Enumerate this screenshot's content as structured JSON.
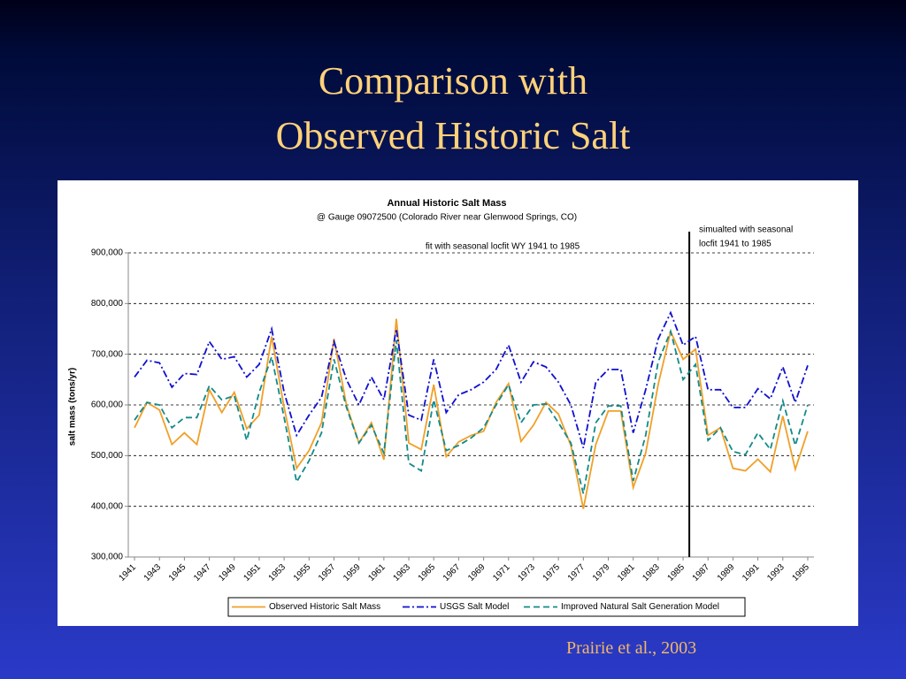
{
  "slide": {
    "title_lines": [
      "Comparison with",
      "Observed Historic Salt"
    ],
    "citation": "Prairie et al., 2003"
  },
  "chart_data": {
    "type": "line",
    "title": "Annual Historic Salt Mass",
    "subtitle": "@ Gauge 09072500 (Colorado River near Glenwood Springs, CO)",
    "annotations": [
      "fit with seasonal locfit WY 1941 to 1985",
      "simualted with seasonal",
      "locfit 1941 to 1985"
    ],
    "divider_x": 1985.5,
    "y_label": "salt mass (tons/yr)",
    "x": [
      1941,
      1942,
      1943,
      1944,
      1945,
      1946,
      1947,
      1948,
      1949,
      1950,
      1951,
      1952,
      1953,
      1954,
      1955,
      1956,
      1957,
      1958,
      1959,
      1960,
      1961,
      1962,
      1963,
      1964,
      1965,
      1966,
      1967,
      1968,
      1969,
      1970,
      1971,
      1972,
      1973,
      1974,
      1975,
      1976,
      1977,
      1978,
      1979,
      1980,
      1981,
      1982,
      1983,
      1984,
      1985,
      1986,
      1987,
      1988,
      1989,
      1990,
      1991,
      1992,
      1993,
      1994,
      1995
    ],
    "xlim": [
      1940.5,
      1995.5
    ],
    "xticks": [
      1941,
      1943,
      1945,
      1947,
      1949,
      1951,
      1953,
      1955,
      1957,
      1959,
      1961,
      1963,
      1965,
      1967,
      1969,
      1971,
      1973,
      1975,
      1977,
      1979,
      1981,
      1983,
      1985,
      1987,
      1989,
      1991,
      1993,
      1995
    ],
    "ylim": [
      300000,
      900000
    ],
    "yticks": [
      {
        "value": 300000,
        "label": "300,000"
      },
      {
        "value": 400000,
        "label": "400,000"
      },
      {
        "value": 500000,
        "label": "500,000"
      },
      {
        "value": 600000,
        "label": "600,000"
      },
      {
        "value": 700000,
        "label": "700,000"
      },
      {
        "value": 800000,
        "label": "800,000"
      },
      {
        "value": 900000,
        "label": "900,000"
      }
    ],
    "grid": true,
    "legend": "bottom",
    "series": [
      {
        "name": "Observed Historic Salt Mass",
        "color": "#f0a028",
        "style": "solid",
        "values": [
          555000,
          605000,
          590000,
          522000,
          545000,
          522000,
          630000,
          585000,
          625000,
          553000,
          580000,
          735000,
          595000,
          475000,
          510000,
          565000,
          730000,
          600000,
          525000,
          565000,
          492000,
          770000,
          525000,
          512000,
          640000,
          498000,
          527000,
          540000,
          548000,
          605000,
          642000,
          528000,
          560000,
          605000,
          582000,
          520000,
          395000,
          522000,
          588000,
          588000,
          437000,
          505000,
          640000,
          745000,
          690000,
          710000,
          540000,
          555000,
          475000,
          470000,
          493000,
          468000,
          578000,
          473000,
          548000
        ]
      },
      {
        "name": "USGS Salt Model",
        "color": "#1010d0",
        "style": "dash-dot",
        "values": [
          655000,
          688000,
          683000,
          635000,
          662000,
          660000,
          725000,
          690000,
          695000,
          655000,
          680000,
          750000,
          625000,
          540000,
          580000,
          615000,
          725000,
          650000,
          600000,
          655000,
          610000,
          750000,
          580000,
          570000,
          690000,
          585000,
          620000,
          630000,
          645000,
          670000,
          718000,
          645000,
          685000,
          675000,
          645000,
          600000,
          515000,
          645000,
          670000,
          670000,
          545000,
          630000,
          730000,
          782000,
          718000,
          735000,
          630000,
          630000,
          595000,
          595000,
          632000,
          612000,
          675000,
          605000,
          678000
        ]
      },
      {
        "name": "Improved Natural Salt Generation Model",
        "color": "#138a8a",
        "style": "dashed",
        "values": [
          570000,
          605000,
          600000,
          555000,
          575000,
          575000,
          638000,
          610000,
          618000,
          530000,
          625000,
          695000,
          575000,
          448000,
          490000,
          545000,
          690000,
          595000,
          525000,
          560000,
          505000,
          728000,
          485000,
          470000,
          610000,
          510000,
          520000,
          535000,
          555000,
          600000,
          640000,
          565000,
          600000,
          602000,
          565000,
          525000,
          425000,
          565000,
          598000,
          598000,
          450000,
          540000,
          685000,
          745000,
          650000,
          680000,
          530000,
          555000,
          508000,
          502000,
          545000,
          512000,
          608000,
          520000,
          600000
        ]
      }
    ]
  }
}
